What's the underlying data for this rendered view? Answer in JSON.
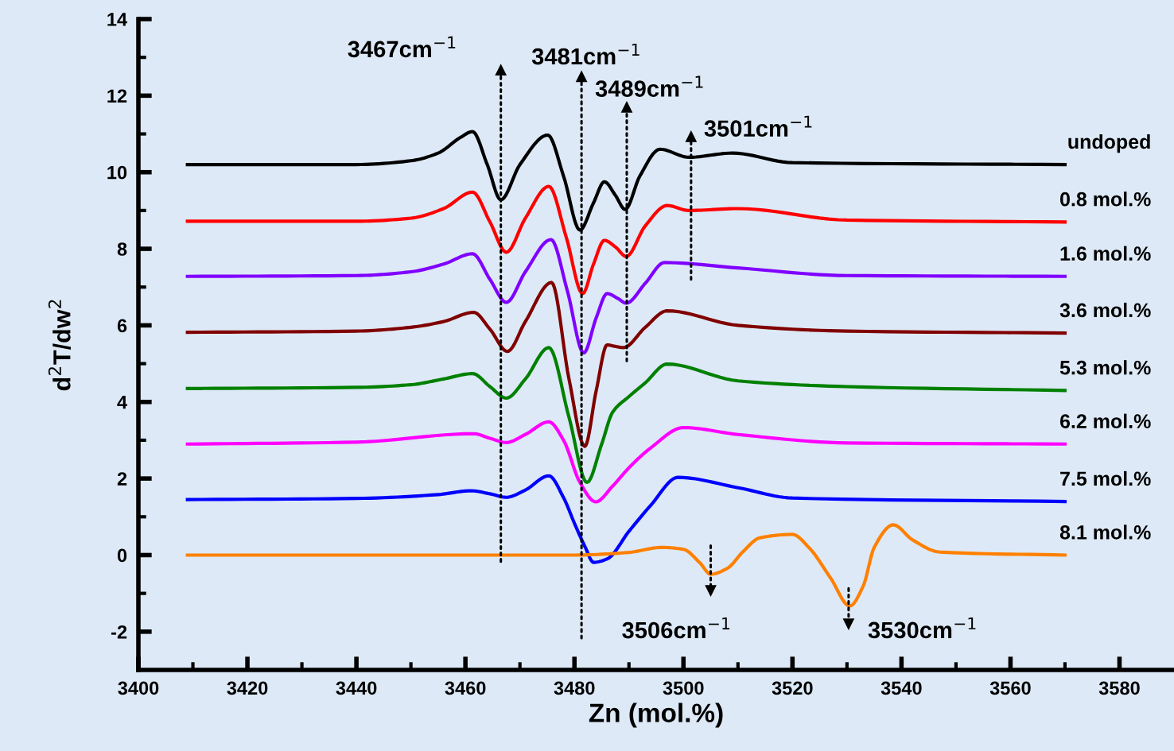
{
  "chart_data": {
    "type": "line",
    "xlabel": "Zn (mol.%)",
    "ylabel": "d$^{2}$T/dw$^{2}$",
    "xlim": [
      3400,
      3590
    ],
    "ylim": [
      -3,
      14
    ],
    "xticks": [
      3400,
      3420,
      3440,
      3460,
      3480,
      3500,
      3520,
      3540,
      3560,
      3580
    ],
    "yticks": [
      -2,
      0,
      2,
      4,
      6,
      8,
      10,
      12,
      14
    ],
    "grid": false,
    "legend": false,
    "series": [
      {
        "name": "undoped",
        "color": "#000000",
        "x": [
          3409,
          3440,
          3450,
          3455,
          3459,
          3461.3,
          3464,
          3466.5,
          3470,
          3475.1,
          3478,
          3481,
          3483.5,
          3485.5,
          3487.5,
          3489.3,
          3492,
          3495.7,
          3501,
          3509,
          3520,
          3570
        ],
        "values": [
          10.2,
          10.2,
          10.3,
          10.5,
          10.9,
          11.06,
          10.2,
          9.28,
          10.2,
          10.97,
          9.9,
          8.49,
          9.2,
          9.75,
          9.4,
          9.03,
          9.9,
          10.6,
          10.39,
          10.5,
          10.25,
          10.2
        ]
      },
      {
        "name": "0.8 mol.%",
        "color": "#ff0000",
        "x": [
          3409,
          3440,
          3450,
          3456,
          3461.3,
          3464.5,
          3467.5,
          3471,
          3475.3,
          3478.5,
          3481.5,
          3483.5,
          3485.5,
          3487.5,
          3489.5,
          3493,
          3497,
          3501,
          3510,
          3530,
          3570
        ],
        "values": [
          8.72,
          8.72,
          8.8,
          9.05,
          9.48,
          8.7,
          7.91,
          8.8,
          9.63,
          8.3,
          6.83,
          7.6,
          8.22,
          8.05,
          7.8,
          8.6,
          9.13,
          9.0,
          9.05,
          8.75,
          8.7
        ]
      },
      {
        "name": "1.6 mol.%",
        "color": "#8000ff",
        "x": [
          3409,
          3440,
          3450,
          3456,
          3461.3,
          3464.5,
          3467.5,
          3471,
          3475.7,
          3478.7,
          3481.7,
          3484,
          3486,
          3488,
          3489.5,
          3493,
          3496.5,
          3510,
          3530,
          3570
        ],
        "values": [
          7.28,
          7.3,
          7.4,
          7.6,
          7.87,
          7.2,
          6.6,
          7.4,
          8.24,
          6.9,
          5.28,
          6.2,
          6.83,
          6.7,
          6.58,
          7.1,
          7.64,
          7.5,
          7.3,
          7.28
        ]
      },
      {
        "name": "3.6 mol.%",
        "color": "#800000",
        "x": [
          3409,
          3440,
          3450,
          3456,
          3461.5,
          3464.5,
          3467.7,
          3471,
          3475.8,
          3479,
          3481.9,
          3484,
          3486,
          3487.5,
          3489,
          3493,
          3497,
          3510,
          3530,
          3570
        ],
        "values": [
          5.82,
          5.85,
          5.95,
          6.1,
          6.34,
          5.9,
          5.32,
          6.1,
          7.12,
          4.6,
          2.84,
          4.3,
          5.49,
          5.45,
          5.42,
          5.95,
          6.38,
          6.0,
          5.85,
          5.8
        ]
      },
      {
        "name": "5.3 mol.%",
        "color": "#008000",
        "x": [
          3409,
          3440,
          3450,
          3456,
          3461.3,
          3464.5,
          3467.5,
          3471,
          3475.3,
          3479,
          3482.3,
          3485,
          3487,
          3490,
          3493,
          3497,
          3510,
          3530,
          3570
        ],
        "values": [
          4.35,
          4.38,
          4.45,
          4.6,
          4.74,
          4.4,
          4.1,
          4.6,
          5.42,
          3.6,
          1.9,
          2.9,
          3.73,
          4.14,
          4.5,
          4.99,
          4.55,
          4.4,
          4.3
        ]
      },
      {
        "name": "6.2 mol.%",
        "color": "#ff00ff",
        "x": [
          3409,
          3440,
          3461.5,
          3464.5,
          3467.5,
          3471,
          3475.3,
          3478,
          3481,
          3483.9,
          3487,
          3490,
          3494,
          3500,
          3510,
          3530,
          3570
        ],
        "values": [
          2.9,
          2.95,
          3.17,
          3.05,
          2.94,
          3.15,
          3.48,
          3.0,
          1.9,
          1.39,
          1.8,
          2.28,
          2.8,
          3.33,
          3.15,
          2.93,
          2.9
        ]
      },
      {
        "name": "7.5 mol.%",
        "color": "#0000ff",
        "x": [
          3409,
          3440,
          3455,
          3461,
          3464.5,
          3467.5,
          3471,
          3475.3,
          3478,
          3480,
          3482,
          3483.5,
          3486,
          3490,
          3494,
          3499,
          3510,
          3520,
          3570
        ],
        "values": [
          1.45,
          1.48,
          1.58,
          1.68,
          1.6,
          1.51,
          1.7,
          2.07,
          1.5,
          0.83,
          0.2,
          -0.19,
          -0.1,
          0.62,
          1.3,
          2.03,
          1.76,
          1.49,
          1.4
        ]
      },
      {
        "name": "8.1 mol.%",
        "color": "#ff8000",
        "x": [
          3409,
          3480,
          3490,
          3496,
          3500,
          3503,
          3505,
          3508,
          3511,
          3514,
          3520,
          3523,
          3527,
          3530.5,
          3533,
          3535,
          3538.5,
          3542,
          3547,
          3570
        ],
        "values": [
          0,
          0,
          0.07,
          0.2,
          0.15,
          -0.2,
          -0.5,
          -0.35,
          0.1,
          0.45,
          0.54,
          0.2,
          -0.6,
          -1.33,
          -0.8,
          0.2,
          0.79,
          0.4,
          0.08,
          0
        ]
      },
      {
        "type": "line",
        "line_style": "dotted",
        "marker": "triangle",
        "color": "#000000",
        "x": [
          3466.5,
          3466.5
        ],
        "values": [
          -0.17,
          12.67
        ]
      },
      {
        "type": "line",
        "line_style": "dotted",
        "marker": "triangle",
        "color": "#000000",
        "x": [
          3481.3,
          3481.3
        ],
        "values": [
          -2.17,
          12.5
        ]
      },
      {
        "type": "line",
        "line_style": "dotted",
        "marker": "triangle",
        "color": "#000000",
        "x": [
          3489.6,
          3489.6
        ],
        "values": [
          5.07,
          11.7
        ]
      },
      {
        "type": "line",
        "line_style": "dotted",
        "marker": "triangle",
        "color": "#000000",
        "x": [
          3501.4,
          3501.4
        ],
        "values": [
          7.2,
          10.93
        ]
      },
      {
        "type": "line",
        "line_style": "dotted",
        "marker": "triangle",
        "color": "#000000",
        "x": [
          3505,
          3505
        ],
        "values": [
          0.25,
          -0.93
        ]
      },
      {
        "type": "line",
        "line_style": "dotted",
        "marker": "triangle",
        "color": "#000000",
        "x": [
          3530.3,
          3530.3
        ],
        "values": [
          -0.87,
          -1.8
        ]
      }
    ],
    "annotations": [
      {
        "text": "3467cm$^{−1}$",
        "x": 3466.5,
        "y": 12.67
      },
      {
        "text": "3481cm$^{−1}$",
        "x": 3481.3,
        "y": 12.5
      },
      {
        "text": "3489cm$^{−1}$",
        "x": 3489.6,
        "y": 11.7
      },
      {
        "text": "3501cm$^{−1}$",
        "x": 3501.4,
        "y": 10.93
      },
      {
        "text": "3506cm$^{−1}$",
        "x": 3505,
        "y": -0.93
      },
      {
        "text": "3530cm$^{−1}$",
        "x": 3530.3,
        "y": -1.8
      }
    ]
  }
}
